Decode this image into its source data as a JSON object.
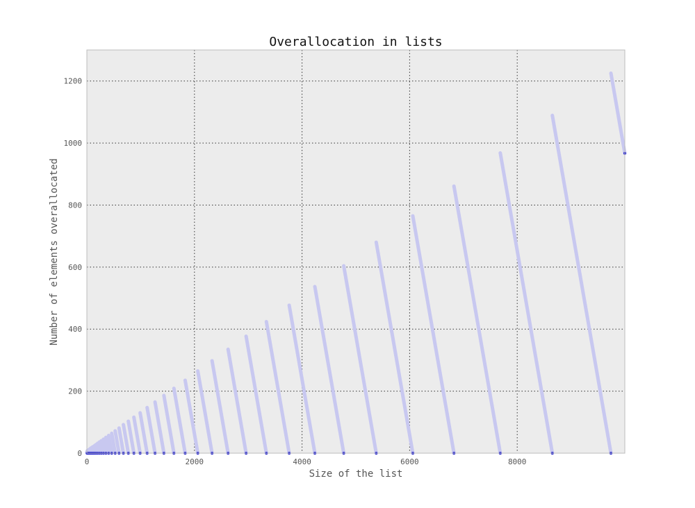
{
  "chart_data": {
    "type": "line",
    "title": "Overallocation in lists",
    "xlabel": "Size of the list",
    "ylabel": "Number of elements overallocated",
    "xlim": [
      0,
      10000
    ],
    "ylim": [
      0,
      1300
    ],
    "xticks": [
      0,
      2000,
      4000,
      6000,
      8000
    ],
    "xtick_labels": [
      "0",
      "2000",
      "4000",
      "6000",
      "8000"
    ],
    "yticks": [
      0,
      200,
      400,
      600,
      800,
      1000,
      1200
    ],
    "ytick_labels": [
      "0",
      "200",
      "400",
      "600",
      "800",
      "1000",
      "1200"
    ],
    "grid": true,
    "background_color": "#ececec",
    "series_color": "#c8c8f0",
    "marker_color": "#2a2ad0",
    "series": [
      {
        "description": "sawtooth: each segment starts at a list capacity boundary and decreases linearly to 0 at the next capacity",
        "capacities": [
          0,
          4,
          8,
          16,
          25,
          35,
          46,
          58,
          72,
          88,
          106,
          126,
          148,
          173,
          201,
          233,
          269,
          309,
          354,
          405,
          462,
          526,
          598,
          679,
          771,
          874,
          990,
          1120,
          1267,
          1432,
          1618,
          1827,
          2062,
          2327,
          2625,
          2960,
          3337,
          3761,
          4238,
          4775,
          5379,
          6059,
          6824,
          7685,
          8653,
          9742,
          10967
        ],
        "x_max": 10000
      }
    ]
  },
  "page": {
    "title": "Overallocation in lists"
  }
}
